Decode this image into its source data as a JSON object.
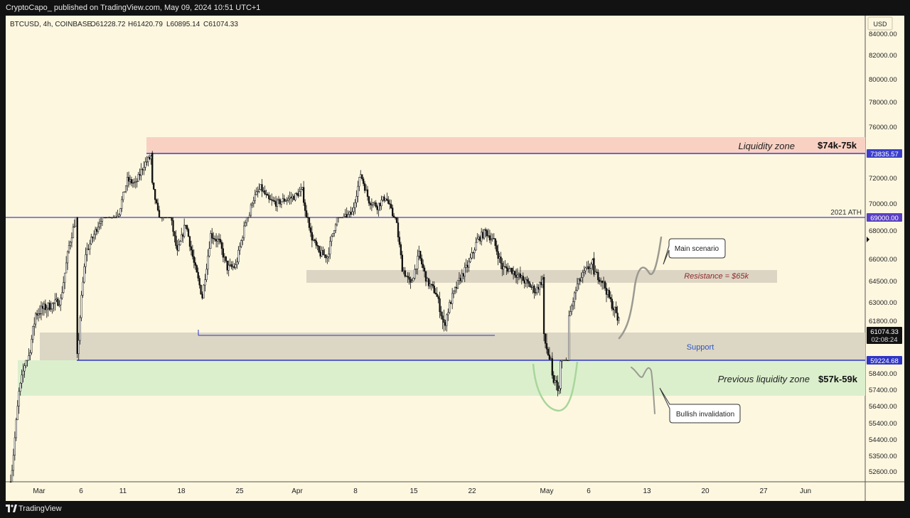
{
  "header": {
    "publish_line": "CryptoCapo_ published on TradingView.com, May 09, 2024 10:51 UTC+1"
  },
  "footer": {
    "brand": "TradingView"
  },
  "chart_data": {
    "type": "candlestick",
    "symbol_line": "BTCUSD, 4h, COINBASE",
    "ohlc_readout": {
      "open": "O61228.72",
      "high": "H61420.79",
      "low": "L60895.14",
      "close": "C61074.33"
    },
    "currency": "USD",
    "x_axis_labels": [
      "Mar",
      "6",
      "11",
      "18",
      "25",
      "Apr",
      "8",
      "15",
      "22",
      "May",
      "6",
      "13",
      "20",
      "27",
      "Jun"
    ],
    "y_axis_labels": [
      "84000.00",
      "82000.00",
      "80000.00",
      "78000.00",
      "76000.00",
      "72000.00",
      "70000.00",
      "68000.00",
      "66000.00",
      "64500.00",
      "63000.00",
      "61800.00",
      "58400.00",
      "57400.00",
      "56400.00",
      "55400.00",
      "54400.00",
      "53500.00",
      "52600.00"
    ],
    "price_tags": {
      "liquidity_top": "73835.57",
      "ath": "69000.00",
      "current": "61074.33",
      "countdown": "02:08:24",
      "support": "59224.68"
    },
    "annotations": {
      "liquidity_zone": "Liquidity zone",
      "liquidity_range": "$74k-75k",
      "ath_label": "2021 ATH",
      "resistance": "Resistance = $65k",
      "support": "Support",
      "prev_zone": "Previous liquidity zone",
      "prev_range": "$57k-59k",
      "main_scenario": "Main scenario",
      "bullish_invalidation": "Bullish invalidation"
    },
    "levels": {
      "liquidity_top": 73835.57,
      "ath": 69000,
      "support": 59224.68,
      "current": 61074.33
    },
    "zones": {
      "liquidity": [
        73835.57,
        75100
      ],
      "resistance": [
        64400,
        65400
      ],
      "support": [
        59224.68,
        61320
      ],
      "previous_liquidity": [
        56750,
        59224.68
      ]
    },
    "price_path": [
      [
        "Feb 26",
        51100
      ],
      [
        "Feb 27",
        56400
      ],
      [
        "Feb 28",
        59000
      ],
      [
        "Feb 29",
        61500
      ],
      [
        "Mar 1",
        61800
      ],
      [
        "Mar 2",
        62000
      ],
      [
        "Mar 3",
        62300
      ],
      [
        "Mar 4",
        66000
      ],
      [
        "Mar 5",
        68400
      ],
      [
        "Mar 5",
        59300
      ],
      [
        "Mar 6",
        65500
      ],
      [
        "Mar 7",
        66800
      ],
      [
        "Mar 8",
        68200
      ],
      [
        "Mar 9",
        68600
      ],
      [
        "Mar 10",
        69400
      ],
      [
        "Mar 11",
        71800
      ],
      [
        "Mar 12",
        71500
      ],
      [
        "Mar 13",
        73000
      ],
      [
        "Mar 14",
        73700
      ],
      [
        "Mar 14",
        71400
      ],
      [
        "Mar 15",
        68200
      ],
      [
        "Mar 16",
        68600
      ],
      [
        "Mar 17",
        65500
      ],
      [
        "Mar 18",
        67600
      ],
      [
        "Mar 19",
        64800
      ],
      [
        "Mar 20",
        62500
      ],
      [
        "Mar 21",
        66800
      ],
      [
        "Mar 22",
        66300
      ],
      [
        "Mar 23",
        64500
      ],
      [
        "Mar 24",
        64600
      ],
      [
        "Mar 25",
        67200
      ],
      [
        "Mar 26",
        70200
      ],
      [
        "Mar 27",
        71200
      ],
      [
        "Mar 28",
        70200
      ],
      [
        "Mar 29",
        70000
      ],
      [
        "Mar 30",
        70300
      ],
      [
        "Mar 31",
        70500
      ],
      [
        "Apr 1",
        71000
      ],
      [
        "Apr 2",
        66800
      ],
      [
        "Apr 3",
        65500
      ],
      [
        "Apr 4",
        65300
      ],
      [
        "Apr 5",
        67700
      ],
      [
        "Apr 6",
        68900
      ],
      [
        "Apr 7",
        69300
      ],
      [
        "Apr 8",
        72300
      ],
      [
        "Apr 9",
        70200
      ],
      [
        "Apr 10",
        69800
      ],
      [
        "Apr 11",
        70500
      ],
      [
        "Apr 12",
        68900
      ],
      [
        "Apr 13",
        64500
      ],
      [
        "Apr 14",
        63300
      ],
      [
        "Apr 15",
        65400
      ],
      [
        "Apr 16",
        63500
      ],
      [
        "Apr 17",
        62800
      ],
      [
        "Apr 18",
        60900
      ],
      [
        "Apr 19",
        62500
      ],
      [
        "Apr 20",
        63800
      ],
      [
        "Apr 21",
        64800
      ],
      [
        "Apr 22",
        66400
      ],
      [
        "Apr 23",
        67000
      ],
      [
        "Apr 24",
        66300
      ],
      [
        "Apr 25",
        64500
      ],
      [
        "Apr 26",
        64400
      ],
      [
        "Apr 27",
        63900
      ],
      [
        "Apr 28",
        63400
      ],
      [
        "Apr 29",
        62900
      ],
      [
        "Apr 30",
        63800
      ],
      [
        "Apr 30",
        60300
      ],
      [
        "May 1",
        58800
      ],
      [
        "May 1",
        57300
      ],
      [
        "May 2",
        56500
      ],
      [
        "May 2",
        58300
      ],
      [
        "May 3",
        59100
      ],
      [
        "May 3",
        61200
      ],
      [
        "May 4",
        63300
      ],
      [
        "May 5",
        64300
      ],
      [
        "May 6",
        64900
      ],
      [
        "May 6",
        64200
      ],
      [
        "May 7",
        63600
      ],
      [
        "May 8",
        62200
      ],
      [
        "May 9",
        61074
      ]
    ]
  }
}
